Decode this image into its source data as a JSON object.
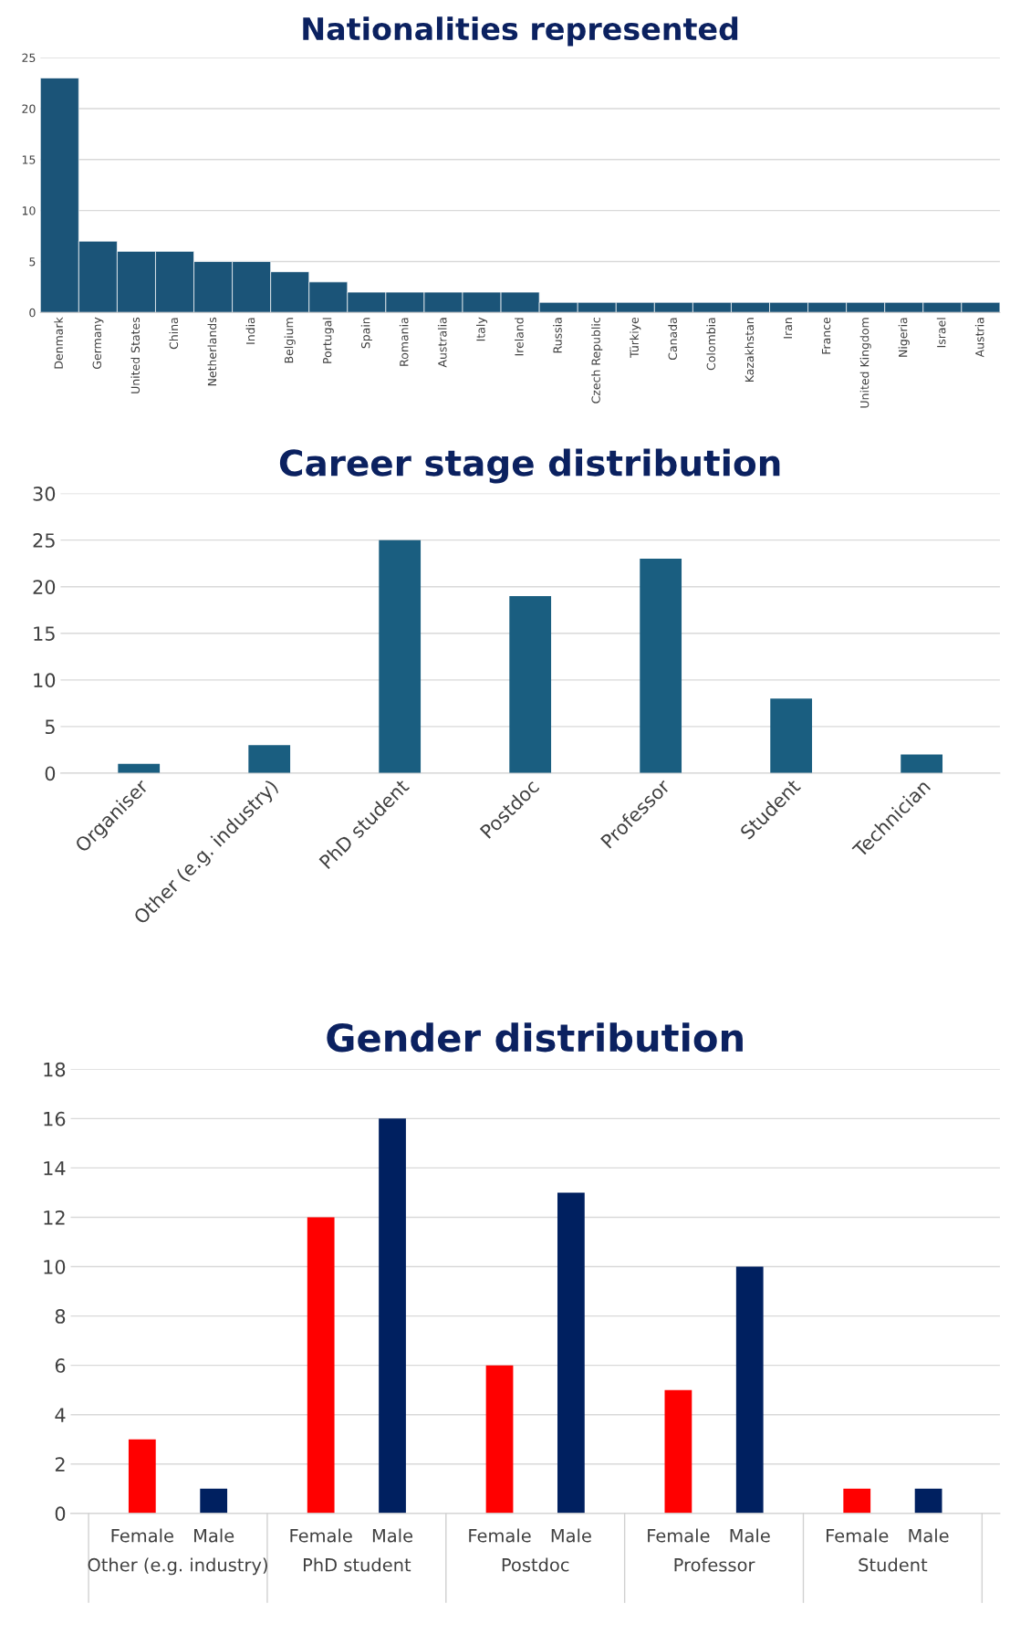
{
  "chart_data": [
    {
      "type": "bar",
      "title": "Nationalities represented",
      "categories": [
        "Denmark",
        "Germany",
        "United States",
        "China",
        "Netherlands",
        "India",
        "Belgium",
        "Portugal",
        "Spain",
        "Romania",
        "Australia",
        "Italy",
        "Ireland",
        "Russia",
        "Czech Republic",
        "Türkiye",
        "Canada",
        "Colombia",
        "Kazakhstan",
        "Iran",
        "France",
        "United Kingdom",
        "Nigeria",
        "Israel",
        "Austria"
      ],
      "values": [
        23,
        7,
        6,
        6,
        5,
        5,
        4,
        3,
        2,
        2,
        2,
        2,
        2,
        1,
        1,
        1,
        1,
        1,
        1,
        1,
        1,
        1,
        1,
        1,
        1
      ],
      "color": "#1b5478",
      "ylim": [
        0,
        25
      ],
      "yticks": [
        0,
        5,
        10,
        15,
        20,
        25
      ],
      "grid": "y",
      "legend": false
    },
    {
      "type": "bar",
      "title": "Career stage distribution",
      "categories": [
        "Organiser",
        "Other (e.g. industry)",
        "PhD student",
        "Postdoc",
        "Professor",
        "Student",
        "Technician"
      ],
      "values": [
        1,
        3,
        25,
        19,
        23,
        8,
        2
      ],
      "color": "#1a5e80",
      "ylim": [
        0,
        30
      ],
      "yticks": [
        0,
        5,
        10,
        15,
        20,
        25,
        30
      ],
      "grid": "y",
      "legend": false
    },
    {
      "type": "bar",
      "title": "Gender distribution",
      "categories": [
        "Other (e.g. industry)",
        "PhD student",
        "Postdoc",
        "Professor",
        "Student"
      ],
      "series": [
        {
          "name": "Female",
          "color": "#ff0000",
          "values": [
            3,
            12,
            6,
            5,
            1
          ]
        },
        {
          "name": "Male",
          "color": "#002060",
          "values": [
            1,
            16,
            13,
            10,
            1
          ]
        }
      ],
      "ylim": [
        0,
        18
      ],
      "yticks": [
        0,
        2,
        4,
        6,
        8,
        10,
        12,
        14,
        16,
        18
      ],
      "grid": "y",
      "legend": false
    }
  ]
}
